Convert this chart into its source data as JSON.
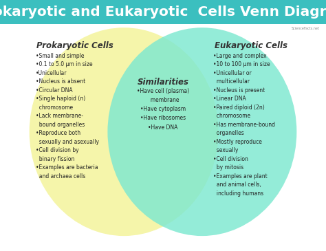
{
  "title": "Prokaryotic and Eukaryotic  Cells Venn Diagram",
  "title_bg": "#3bbfbf",
  "title_color": "white",
  "title_fontsize": 14.5,
  "bg_color": "white",
  "left_circle_color": "#f5f5aa",
  "right_circle_color": "#7de8d0",
  "left_label": "Prokaryotic Cells",
  "right_label": "Eukaryotic Cells",
  "center_label": "Similarities",
  "left_items": [
    "•Small and simple",
    "•0.1 to 5.0 μm in size",
    "•Unicellular",
    "•Nucleus is absent",
    "•Circular DNA",
    "•Single haploid (n)\n  chromosome",
    "•Lack membrane-\n  bound organelles",
    "•Reproduce both\n  sexually and asexually",
    "•Cell division by\n  binary fission",
    "•Examples are bacteria\n  and archaea cells"
  ],
  "center_items": [
    "•Have cell (plasma)\n  membrane",
    "•Have cytoplasm",
    "•Have ribosomes",
    "•Have DNA"
  ],
  "right_items": [
    "•Large and complex",
    "•10 to 100 μm in size",
    "•Unicellular or\n  multicellular",
    "•Nucleus is present",
    "•Linear DNA",
    "•Paired diploid (2n)\n  chromosome",
    "•Has membrane-bound\n  organelles",
    "•Mostly reproduce\n  sexually",
    "•Cell division\n  by mitosis",
    "•Examples are plant\n  and animal cells,\n  including humans"
  ],
  "text_fontsize": 5.5,
  "label_fontsize": 8.5,
  "watermark": "ScienceFacts.net"
}
